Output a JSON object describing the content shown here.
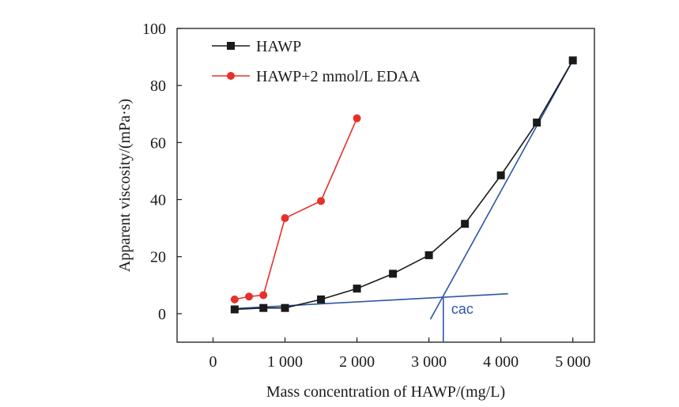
{
  "chart_data": {
    "type": "line",
    "title": "",
    "xlabel": "Mass concentration of HAWP/(mg/L)",
    "ylabel": "Apparent viscosity/(mPa·s)",
    "xlim": [
      -500,
      5300
    ],
    "ylim": [
      -10,
      100
    ],
    "xticks": [
      0,
      1000,
      2000,
      3000,
      4000,
      5000
    ],
    "xtick_labels": [
      "0",
      "1 000",
      "2 000",
      "3 000",
      "4 000",
      "5 000"
    ],
    "yticks": [
      0,
      20,
      40,
      60,
      80,
      100
    ],
    "ytick_labels": [
      "0",
      "20",
      "40",
      "60",
      "80",
      "100"
    ],
    "grid": false,
    "legend_position": "top-left",
    "series": [
      {
        "name": "HAWP",
        "color": "#1a1a1a",
        "marker": "square",
        "x": [
          300,
          700,
          1000,
          1500,
          2000,
          2500,
          3000,
          3500,
          4000,
          4500,
          5000
        ],
        "y": [
          1.5,
          2,
          2,
          5,
          8.8,
          14,
          20.5,
          31.5,
          48.5,
          67,
          88.8
        ]
      },
      {
        "name": "HAWP+2 mmol/L EDAA",
        "color": "#e8302a",
        "marker": "circle",
        "x": [
          300,
          500,
          700,
          1000,
          1500,
          2000
        ],
        "y": [
          5,
          6,
          6.5,
          33.5,
          39.5,
          68.5
        ]
      }
    ],
    "annotations": {
      "color": "#2d55a6",
      "cac_label": "cac",
      "cac_x": 3200,
      "lines": [
        {
          "x": [
            300,
            4100
          ],
          "y": [
            1.8,
            7
          ]
        },
        {
          "x": [
            3020,
            5000
          ],
          "y": [
            -2,
            88.8
          ]
        },
        {
          "x": [
            3200,
            3200
          ],
          "y": [
            5.5,
            -10
          ]
        }
      ]
    }
  }
}
